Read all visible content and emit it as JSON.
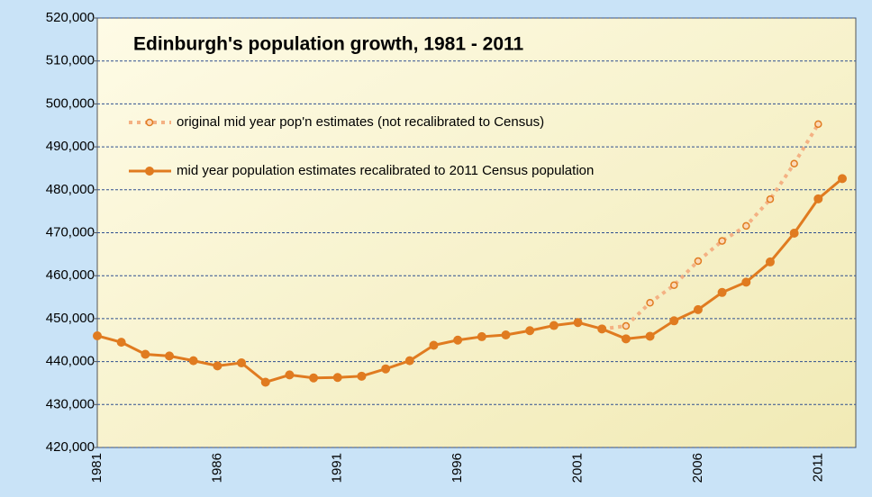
{
  "chart_data": {
    "type": "line",
    "title": "Edinburgh's population growth, 1981 - 2011",
    "categories": [
      "1981",
      null,
      null,
      null,
      null,
      "1986",
      null,
      null,
      null,
      null,
      "1991",
      null,
      null,
      null,
      null,
      "1996",
      null,
      null,
      null,
      null,
      "2001",
      null,
      null,
      null,
      null,
      "2006",
      null,
      null,
      null,
      null,
      "2011",
      null
    ],
    "series": [
      {
        "name": "original mid year pop'n estimates (not recalibrated to Census)",
        "color": "#f4b183",
        "marker_color": "#e07b20",
        "line_style": "dotted",
        "values": [
          null,
          null,
          null,
          null,
          null,
          null,
          null,
          null,
          null,
          null,
          null,
          null,
          null,
          null,
          null,
          null,
          null,
          null,
          null,
          null,
          null,
          447600,
          448300,
          453700,
          457800,
          463400,
          468100,
          471600,
          477800,
          486100,
          495300,
          null
        ]
      },
      {
        "name": "mid year population estimates recalibrated to 2011 Census population",
        "color": "#e07b20",
        "marker_color": "#e07b20",
        "line_style": "solid",
        "values": [
          446000,
          444500,
          441700,
          441300,
          440200,
          439000,
          439700,
          435200,
          436900,
          436200,
          436300,
          436600,
          438300,
          440200,
          443800,
          445000,
          445800,
          446200,
          447200,
          448400,
          449100,
          447600,
          445300,
          445900,
          449500,
          452100,
          456100,
          458500,
          463200,
          469900,
          477900,
          482600
        ]
      }
    ],
    "ylim": [
      420000,
      520000
    ],
    "yticks": [
      {
        "value": 420000,
        "label": "420,000"
      },
      {
        "value": 430000,
        "label": "430,000"
      },
      {
        "value": 440000,
        "label": "440,000"
      },
      {
        "value": 450000,
        "label": "450,000"
      },
      {
        "value": 460000,
        "label": "460,000"
      },
      {
        "value": 470000,
        "label": "470,000"
      },
      {
        "value": 480000,
        "label": "480,000"
      },
      {
        "value": 490000,
        "label": "490,000"
      },
      {
        "value": 500000,
        "label": "500,000"
      },
      {
        "value": 510000,
        "label": "510,000"
      },
      {
        "value": 520000,
        "label": "520,000"
      }
    ],
    "grid": true,
    "legend": "upper left"
  }
}
